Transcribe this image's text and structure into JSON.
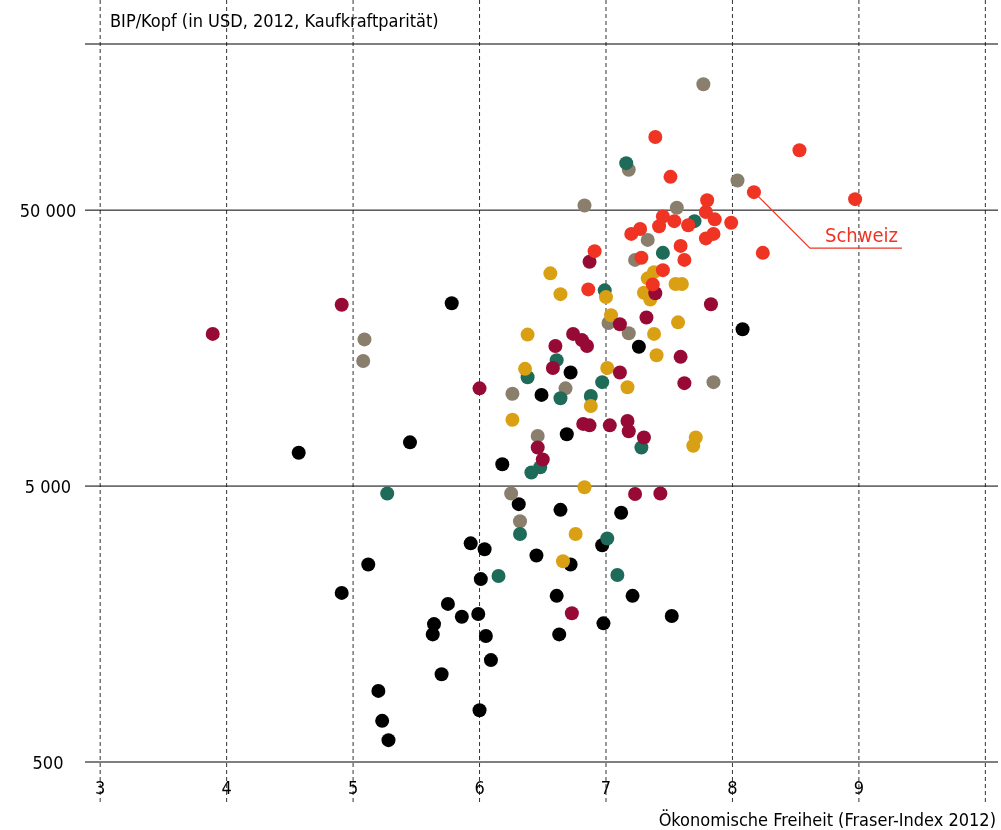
{
  "chart_data": {
    "type": "scatter",
    "ylabel": "BIP/Kopf (in USD, 2012, Kaufkraftparität)",
    "xlabel": "Ökonomische Freiheit (Fraser-Index 2012)",
    "log": "y",
    "grid": true,
    "marker": "circle",
    "xlim": [
      2.88,
      10.1
    ],
    "xticks": [
      3,
      4,
      5,
      6,
      7,
      8,
      9,
      {
        "value": 10,
        "label": null
      }
    ],
    "ylim": [
      500,
      200000
    ],
    "yticks": [
      {
        "value": 500,
        "label": "500"
      },
      {
        "value": 5000,
        "label": "5 000"
      },
      {
        "value": 50000,
        "label": "50 000"
      }
    ],
    "annotations": [
      {
        "text": "Schweiz",
        "x": 8.17,
        "y": 58100
      }
    ],
    "series": [
      {
        "color": "#000000",
        "x": [
          5.78,
          5.45,
          4.57,
          8.08,
          7.26,
          6.72,
          6.49,
          6.69,
          6.18,
          6.31,
          6.64,
          7.12,
          5.93,
          6.04,
          5.12,
          6.45,
          6.72,
          6.97,
          6.01,
          4.91,
          6.61,
          7.21,
          5.75,
          5.99,
          5.86,
          5.64,
          5.63,
          6.98,
          7.52,
          6.63,
          6.05,
          6.09,
          5.7,
          5.2,
          6.0,
          5.23,
          5.28
        ],
        "values": [
          23000,
          7200,
          6600,
          18500,
          16000,
          12900,
          10700,
          7700,
          6000,
          4300,
          4100,
          4000,
          3100,
          2950,
          2600,
          2800,
          2600,
          3050,
          2300,
          2050,
          2000,
          2000,
          1870,
          1720,
          1680,
          1580,
          1450,
          1590,
          1690,
          1450,
          1430,
          1170,
          1040,
          905,
          770,
          705,
          600
        ]
      },
      {
        "color": "#8a7f6d",
        "x": [
          7.77,
          7.18,
          8.04,
          6.83,
          7.56,
          7.33,
          7.23,
          7.02,
          7.18,
          7.85,
          6.68,
          6.26,
          6.46,
          6.25,
          6.32,
          5.09,
          5.08
        ],
        "values": [
          143000,
          70000,
          64000,
          52000,
          51000,
          39000,
          33000,
          19500,
          17900,
          11900,
          11300,
          10800,
          7600,
          4700,
          3730,
          17000,
          14200
        ]
      },
      {
        "color": "#1f6b5a",
        "x": [
          7.16,
          7.7,
          7.45,
          6.99,
          6.61,
          6.38,
          6.97,
          6.88,
          6.64,
          7.28,
          6.48,
          6.41,
          5.27,
          6.32,
          7.01,
          6.15,
          7.09
        ],
        "values": [
          74000,
          45600,
          35000,
          25600,
          14300,
          12400,
          11900,
          10600,
          10400,
          6900,
          5850,
          5600,
          4700,
          3350,
          3230,
          2360,
          2380
        ]
      },
      {
        "color": "#d9a014",
        "x": [
          6.56,
          6.64,
          6.38,
          6.36,
          7.0,
          7.04,
          7.01,
          7.17,
          6.88,
          6.26,
          7.71,
          7.69,
          7.38,
          7.33,
          7.3,
          7.35,
          7.55,
          7.6,
          7.57,
          7.38,
          7.4,
          6.83,
          6.76,
          6.66
        ],
        "values": [
          29500,
          24800,
          17700,
          13300,
          24200,
          20800,
          13400,
          11400,
          9750,
          8700,
          7500,
          7000,
          29800,
          28300,
          25100,
          23700,
          27000,
          27000,
          19600,
          17800,
          14900,
          4950,
          3350,
          2670
        ]
      },
      {
        "color": "#960a35",
        "x": [
          3.89,
          4.91,
          6.0,
          6.87,
          6.74,
          6.81,
          6.85,
          6.6,
          6.58,
          7.11,
          7.32,
          7.39,
          7.11,
          7.83,
          7.59,
          7.62,
          6.82,
          6.87,
          7.03,
          7.17,
          7.18,
          7.3,
          6.46,
          6.5,
          7.23,
          7.43,
          6.73
        ],
        "values": [
          17800,
          22700,
          11300,
          32500,
          17800,
          16900,
          16100,
          16100,
          13400,
          19300,
          20400,
          25000,
          12900,
          22800,
          14700,
          11800,
          8400,
          8300,
          8300,
          8600,
          7900,
          7500,
          6900,
          6240,
          4680,
          4700,
          1730
        ]
      },
      {
        "color": "#f03424",
        "x": [
          7.37,
          7.39,
          8.53,
          7.51,
          8.17,
          8.97,
          7.8,
          7.79,
          7.86,
          7.45,
          7.54,
          7.42,
          7.65,
          7.99,
          7.27,
          7.2,
          7.79,
          7.85,
          8.24,
          7.59,
          7.62,
          6.91,
          7.28,
          7.45,
          6.86
        ],
        "values": [
          26900,
          92000,
          82400,
          66000,
          58100,
          54800,
          54300,
          49200,
          46300,
          47400,
          45600,
          43700,
          44100,
          45000,
          42700,
          41000,
          39500,
          41000,
          35000,
          37100,
          33000,
          35500,
          33600,
          30300,
          25800
        ]
      }
    ]
  }
}
